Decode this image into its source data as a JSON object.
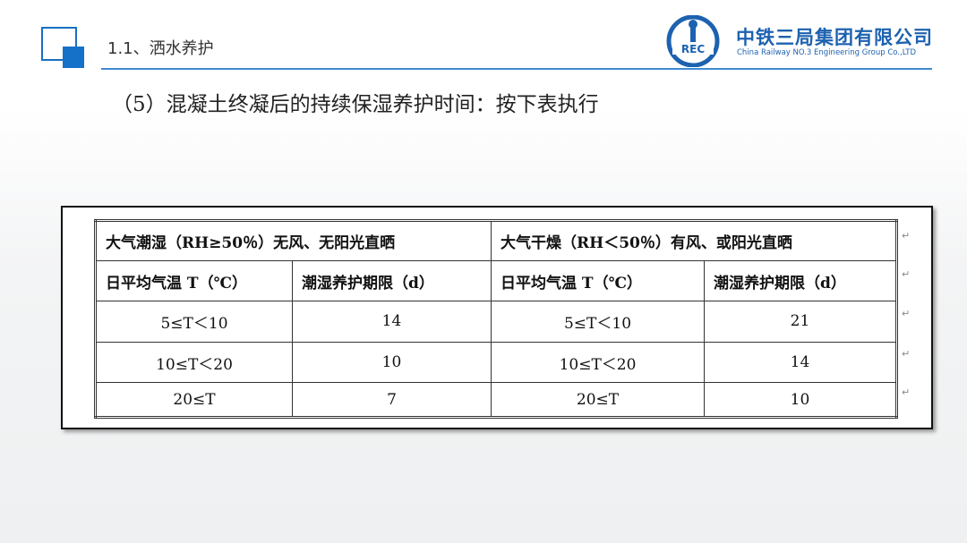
{
  "header": {
    "section_title": "1.1、洒水养护",
    "company_cn": "中铁三局集团有限公司",
    "company_en": "China Railway NO.3 Engineering Group Co.,LTD",
    "logo_text": "CREC",
    "accent": "#1570c8"
  },
  "heading": "（5）混凝土终凝后的持续保湿养护时间：按下表执行",
  "table": {
    "group_headers": [
      "大气潮湿（RH≥50％）无风、无阳光直晒",
      "大气干燥（RH＜50％）有风、或阳光直晒"
    ],
    "column_headers": [
      "日平均气温 T（℃）",
      "潮湿养护期限（d）",
      "日平均气温 T（℃）",
      "潮湿养护期限（d）"
    ],
    "rows": [
      [
        "5≤T＜10",
        "14",
        "5≤T＜10",
        "21"
      ],
      [
        "10≤T＜20",
        "10",
        "10≤T＜20",
        "14"
      ],
      [
        "20≤T",
        "7",
        "20≤T",
        "10"
      ]
    ]
  }
}
